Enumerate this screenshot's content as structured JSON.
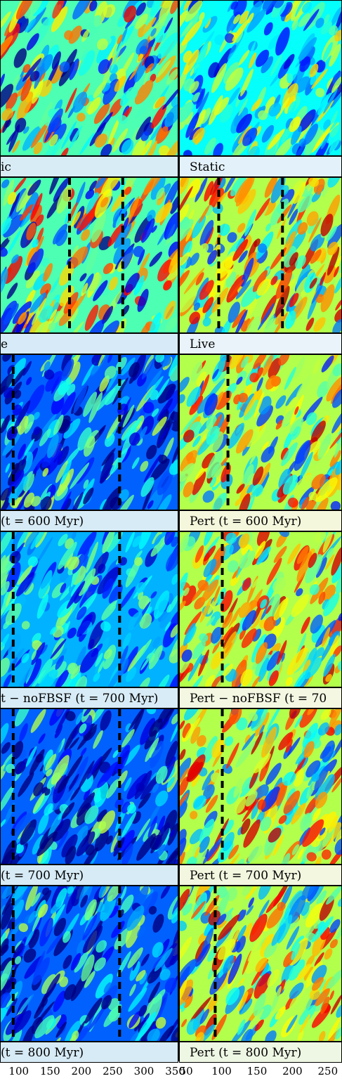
{
  "chart_data": {
    "type": "heatmap",
    "columns": [
      "left",
      "right"
    ],
    "rows": [
      {
        "left_label": "ic",
        "right_label": "Static",
        "left_style": "mixed",
        "right_style": "cool",
        "left_lines": [],
        "right_lines": [],
        "left_bg": "#d8ecf6",
        "right_bg": "#e3f2fa"
      },
      {
        "left_label": "e",
        "right_label": "Live",
        "left_style": "mixed",
        "right_style": "warm",
        "left_lines": [
          180,
          265
        ],
        "right_lines": [
          95,
          185
        ],
        "left_bg": "#d6ebf7",
        "right_bg": "#eaf3f9"
      },
      {
        "left_label": "(t = 600 Myr)",
        "right_label": "Pert (t = 600 Myr)",
        "left_style": "deep",
        "right_style": "hot",
        "left_lines": [
          90,
          260
        ],
        "right_lines": [
          108
        ],
        "left_bg": "#d7ebf6",
        "right_bg": "#f5f7dc"
      },
      {
        "left_label": "t − noFBSF (t = 700 Myr)",
        "right_label": "Pert − noFBSF (t = 70",
        "left_style": "smooth",
        "right_style": "hot",
        "left_lines": [
          90,
          260
        ],
        "right_lines": [
          100
        ],
        "left_bg": "#d8ecf7",
        "right_bg": "#f4f7e2"
      },
      {
        "left_label": "(t = 700 Myr)",
        "right_label": "Pert (t = 700 Myr)",
        "left_style": "deep",
        "right_style": "hot",
        "left_lines": [
          90,
          260
        ],
        "right_lines": [
          100
        ],
        "left_bg": "#d7ebf6",
        "right_bg": "#f3f7df"
      },
      {
        "left_label": "(t = 800 Myr)",
        "right_label": "Pert (t = 800 Myr)",
        "left_style": "deep",
        "right_style": "hot",
        "left_lines": [
          90,
          260
        ],
        "right_lines": [
          90
        ],
        "left_bg": "#d7ebf6",
        "right_bg": "#eef7e4"
      }
    ],
    "left_xticks": [
      "100",
      "150",
      "200",
      "250",
      "300",
      "350"
    ],
    "left_tick_values": [
      100,
      150,
      200,
      250,
      300,
      350
    ],
    "left_xlim": [
      70,
      355
    ],
    "right_xticks": [
      "50",
      "100",
      "150",
      "200",
      "250"
    ],
    "right_tick_values": [
      50,
      100,
      150,
      200,
      250
    ],
    "right_xlim": [
      40,
      270
    ],
    "colormap": [
      "#00007f",
      "#0000ff",
      "#007fff",
      "#00ffff",
      "#7fff7f",
      "#ffff00",
      "#ff7f00",
      "#ff0000",
      "#7f0000"
    ],
    "line_color": "#000000"
  }
}
